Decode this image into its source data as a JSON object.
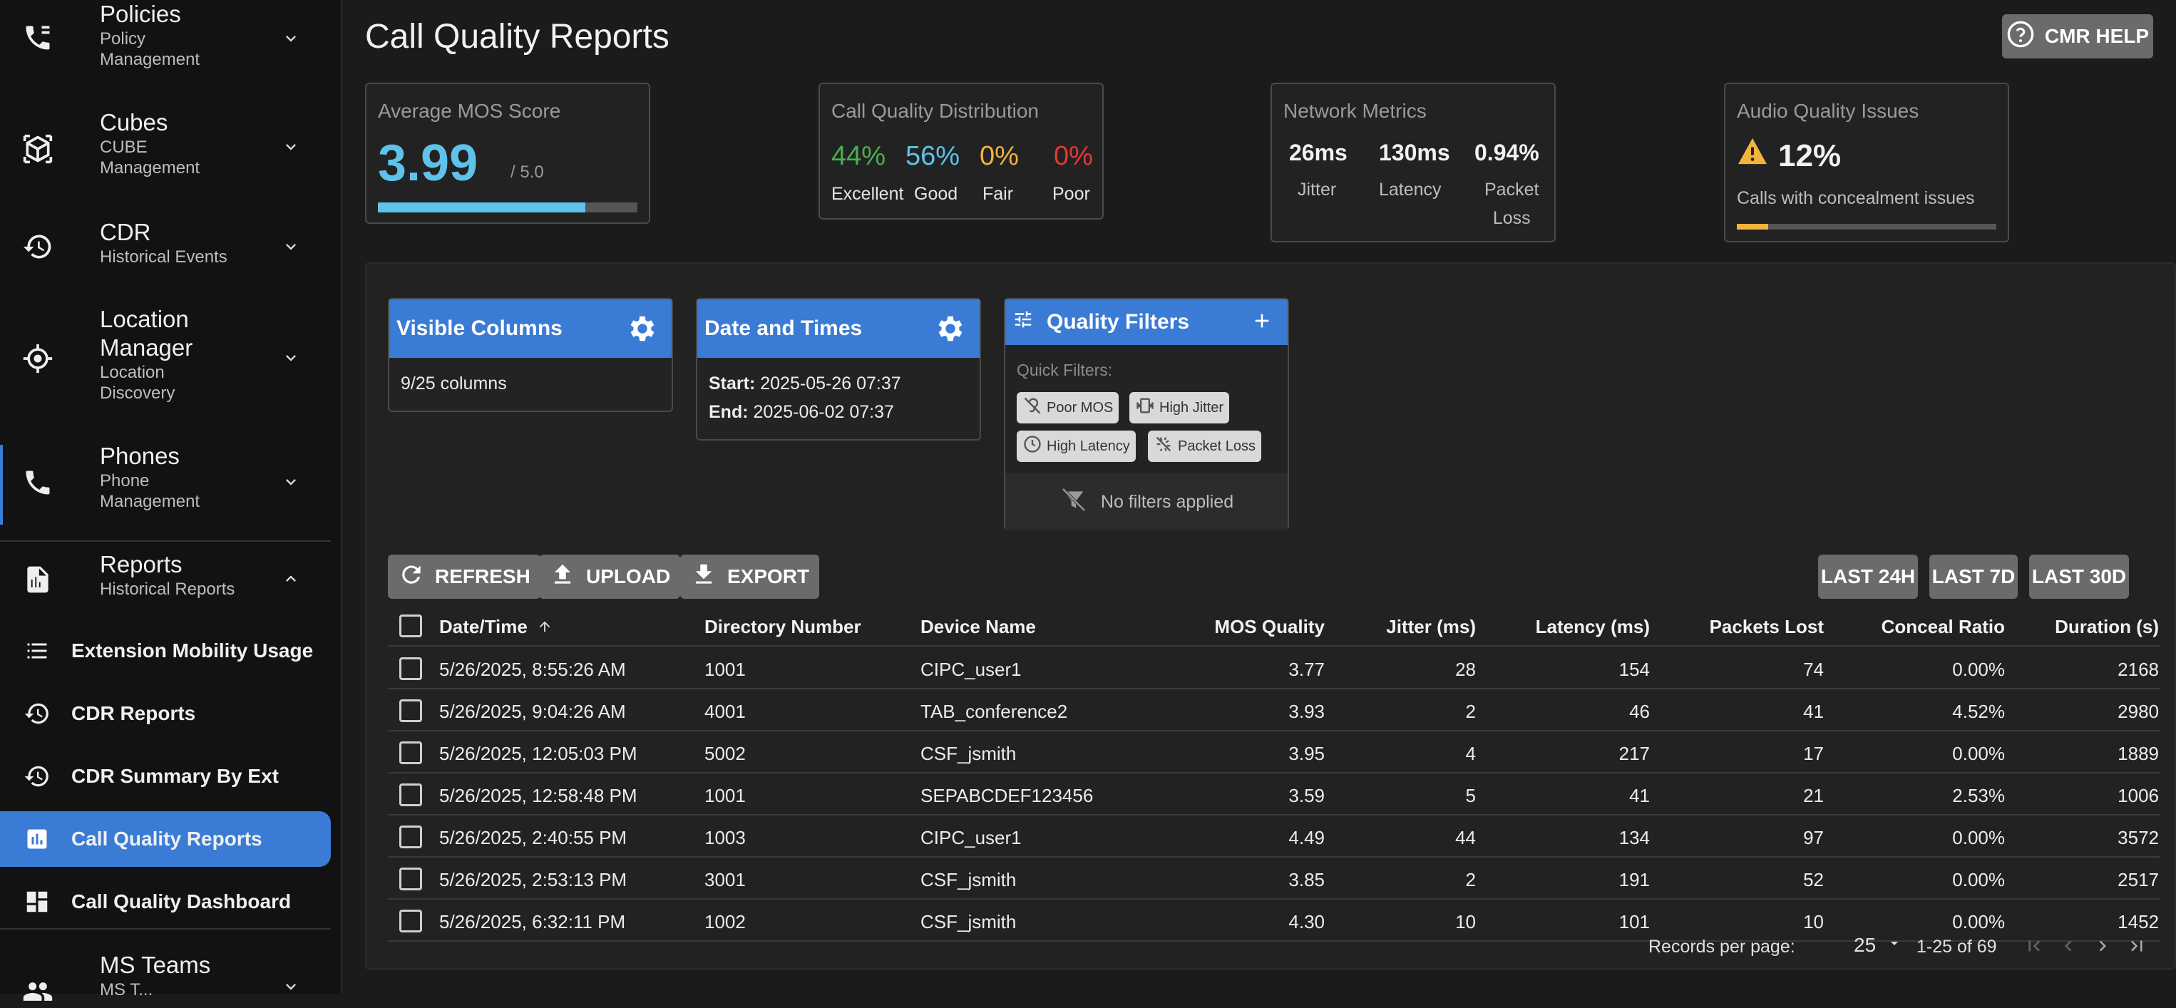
{
  "sidebar": {
    "groups": [
      {
        "title": "Policies",
        "sub1": "Policy",
        "sub2": "Management",
        "icon": "phone-policy-icon"
      },
      {
        "title": "Cubes",
        "sub1": "CUBE",
        "sub2": "Management",
        "icon": "cube-icon"
      },
      {
        "title": "CDR",
        "sub1": "Historical Events",
        "sub2": "",
        "icon": "history-icon"
      },
      {
        "title1": "Location",
        "title2": "Manager",
        "sub1": "Location",
        "sub2": "Discovery",
        "icon": "crosshair-icon"
      },
      {
        "title": "Phones",
        "sub1": "Phone",
        "sub2": "Management",
        "icon": "phone-icon"
      },
      {
        "title": "Reports",
        "sub1": "Historical Reports",
        "sub2": "",
        "icon": "report-icon"
      },
      {
        "title": "MS Teams",
        "sub1": "MS T...",
        "sub2": "",
        "icon": "teams-icon"
      }
    ],
    "report_items": [
      {
        "label": "Extension Mobility Usage",
        "icon": "list-icon"
      },
      {
        "label": "CDR Reports",
        "icon": "history-icon"
      },
      {
        "label": "CDR Summary By Ext",
        "icon": "history-icon"
      },
      {
        "label": "Call Quality Reports",
        "icon": "bar-chart-icon"
      },
      {
        "label": "Call Quality Dashboard",
        "icon": "dashboard-icon"
      }
    ]
  },
  "header": {
    "title": "Call Quality Reports",
    "help_label": "CMR HELP"
  },
  "summary": {
    "mos": {
      "title": "Average MOS Score",
      "value": "3.99",
      "max": "/ 5.0",
      "fraction": 0.8
    },
    "distribution": {
      "title": "Call Quality Distribution",
      "items": [
        {
          "value": "44%",
          "label": "Excellent",
          "color": "#4caf50"
        },
        {
          "value": "56%",
          "label": "Good",
          "color": "#5ec3ea"
        },
        {
          "value": "0%",
          "label": "Fair",
          "color": "#f2b33d"
        },
        {
          "value": "0%",
          "label": "Poor",
          "color": "#e53935"
        }
      ]
    },
    "network": {
      "title": "Network Metrics",
      "jitter": "26ms",
      "jitter_label": "Jitter",
      "latency": "130ms",
      "latency_label": "Latency",
      "loss": "0.94%",
      "loss_label1": "Packet",
      "loss_label2": "Loss"
    },
    "audio": {
      "title": "Audio Quality Issues",
      "value": "12%",
      "caption": "Calls with concealment issues",
      "fraction": 0.12
    }
  },
  "controls": {
    "visible_columns": {
      "title": "Visible Columns",
      "value": "9/25 columns"
    },
    "date_times": {
      "title": "Date and Times",
      "start_label": "Start:",
      "start": "2025-05-26 07:37",
      "end_label": "End:",
      "end": "2025-06-02 07:37"
    },
    "quality_filters": {
      "title": "Quality Filters",
      "quick_label": "Quick Filters:",
      "chips": [
        "Poor MOS",
        "High Jitter",
        "High Latency",
        "Packet Loss"
      ],
      "empty": "No filters applied"
    }
  },
  "actions": {
    "refresh": "REFRESH",
    "upload": "UPLOAD",
    "export": "EXPORT",
    "last24": "LAST 24H",
    "last7": "LAST 7D",
    "last30": "LAST 30D"
  },
  "table": {
    "headers": [
      "Date/Time",
      "Directory Number",
      "Device Name",
      "MOS Quality",
      "Jitter (ms)",
      "Latency (ms)",
      "Packets Lost",
      "Conceal Ratio",
      "Duration (s)"
    ],
    "rows": [
      [
        "5/26/2025, 8:55:26 AM",
        "1001",
        "CIPC_user1",
        "3.77",
        "28",
        "154",
        "74",
        "0.00%",
        "2168"
      ],
      [
        "5/26/2025, 9:04:26 AM",
        "4001",
        "TAB_conference2",
        "3.93",
        "2",
        "46",
        "41",
        "4.52%",
        "2980"
      ],
      [
        "5/26/2025, 12:05:03 PM",
        "5002",
        "CSF_jsmith",
        "3.95",
        "4",
        "217",
        "17",
        "0.00%",
        "1889"
      ],
      [
        "5/26/2025, 12:58:48 PM",
        "1001",
        "SEPABCDEF123456",
        "3.59",
        "5",
        "41",
        "21",
        "2.53%",
        "1006"
      ],
      [
        "5/26/2025, 2:40:55 PM",
        "1003",
        "CIPC_user1",
        "4.49",
        "44",
        "134",
        "97",
        "0.00%",
        "3572"
      ],
      [
        "5/26/2025, 2:53:13 PM",
        "3001",
        "CSF_jsmith",
        "3.85",
        "2",
        "191",
        "52",
        "0.00%",
        "2517"
      ],
      [
        "5/26/2025, 6:32:11 PM",
        "1002",
        "CSF_jsmith",
        "4.30",
        "10",
        "101",
        "10",
        "0.00%",
        "1452"
      ]
    ]
  },
  "pagination": {
    "label": "Records per page:",
    "per_page": "25",
    "range": "1-25 of 69"
  }
}
